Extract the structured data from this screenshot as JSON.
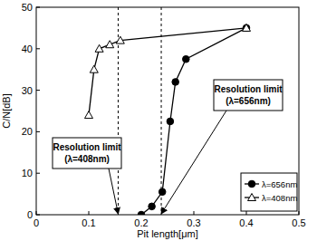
{
  "chart_data": {
    "type": "line",
    "x_label": "Pit length[μm]",
    "y_label": "C/N[dB]",
    "xlim": [
      0,
      0.5
    ],
    "xticks": [
      0,
      0.1,
      0.2,
      0.3,
      0.4,
      0.5
    ],
    "ylim": [
      0,
      50
    ],
    "yticks": [
      0,
      10,
      20,
      30,
      40,
      50
    ],
    "grid": false,
    "legend": "lower right",
    "series": [
      {
        "name": "λ=656nm",
        "color": "#000000",
        "marker": "filled_circle",
        "line_style": "solid",
        "x": [
          0.2,
          0.22,
          0.24,
          0.255,
          0.265,
          0.285,
          0.4
        ],
        "values": [
          0,
          2,
          5.5,
          22.5,
          32,
          37.5,
          45
        ]
      },
      {
        "name": "λ=408nm",
        "color": "#000000",
        "marker": "open_triangle",
        "line_style": "solid",
        "x": [
          0.1,
          0.11,
          0.12,
          0.14,
          0.16,
          0.4
        ],
        "values": [
          24,
          35,
          40,
          41,
          42,
          45
        ]
      }
    ],
    "annotations": [
      {
        "text": "Resolution limit\n(λ=408nm)",
        "x": 0.156
      },
      {
        "text": "Resolution limit\n(λ=656nm)",
        "x": 0.238
      }
    ]
  }
}
